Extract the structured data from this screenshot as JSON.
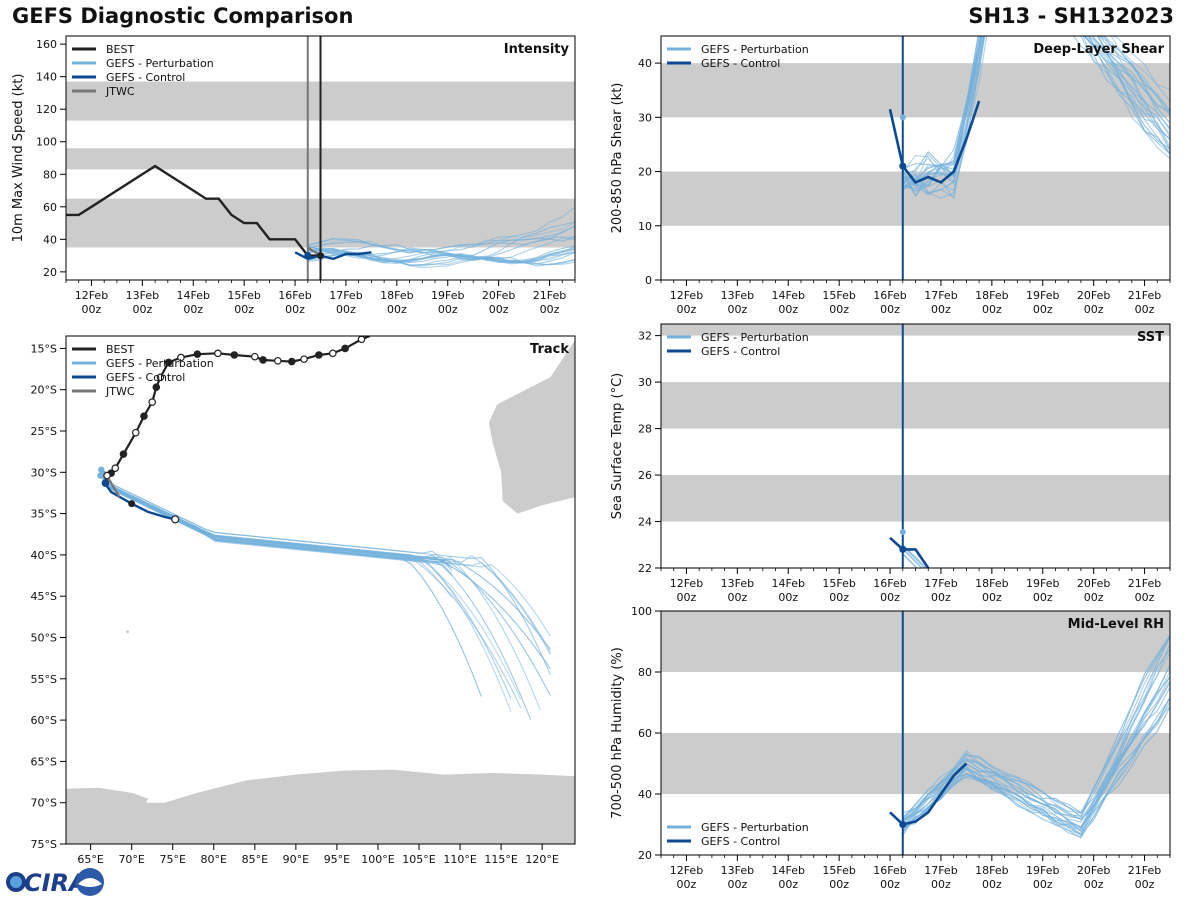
{
  "header": {
    "title_left": "GEFS Diagnostic Comparison",
    "title_right": "SH13 - SH132023",
    "logo_text": "CIRA"
  },
  "colors": {
    "best": "#222222",
    "perturbation": "#74b1dc",
    "control": "#0b4a91",
    "jtwc": "#777777",
    "band": "#cccccc",
    "land": "#cccccc"
  },
  "time_axis": {
    "tick_days": [
      12,
      13,
      14,
      15,
      16,
      17,
      18,
      19,
      20,
      21
    ],
    "labels_top": [
      "12Feb",
      "13Feb",
      "14Feb",
      "15Feb",
      "16Feb",
      "17Feb",
      "18Feb",
      "19Feb",
      "20Feb",
      "21Feb"
    ],
    "labels_bottom": [
      "00z",
      "00z",
      "00z",
      "00z",
      "00z",
      "00z",
      "00z",
      "00z",
      "00z",
      "00z"
    ],
    "init_day": 16.25
  },
  "chart_data": [
    {
      "id": "intensity",
      "type": "line",
      "title": "Intensity",
      "ylabel": "10m Max Wind Speed (kt)",
      "xlim": [
        11.5,
        21.5
      ],
      "ylim": [
        15,
        165
      ],
      "yticks": [
        20,
        40,
        60,
        80,
        100,
        120,
        140,
        160
      ],
      "bands": [
        [
          35,
          65
        ],
        [
          83,
          96
        ],
        [
          113,
          137
        ]
      ],
      "vlines": [
        {
          "x": 16.25,
          "color": "#777777"
        },
        {
          "x": 16.5,
          "color": "#222222"
        }
      ],
      "legend": [
        "BEST",
        "GEFS - Perturbation",
        "GEFS - Control",
        "JTWC"
      ],
      "series": [
        {
          "name": "BEST",
          "x": [
            11.5,
            11.75,
            12,
            12.5,
            13,
            13.25,
            13.5,
            14,
            14.25,
            14.5,
            14.75,
            15,
            15.25,
            15.5,
            16,
            16.25,
            16.5
          ],
          "y": [
            55,
            55,
            60,
            70,
            80,
            85,
            80,
            70,
            65,
            65,
            55,
            50,
            50,
            40,
            40,
            30,
            30
          ]
        },
        {
          "name": "GEFS - Control",
          "x": [
            16,
            16.25,
            16.5,
            16.75,
            17,
            17.25,
            17.5
          ],
          "y": [
            32,
            28,
            30,
            28,
            31,
            31,
            32
          ]
        },
        {
          "name": "JTWC",
          "x": [
            16.25,
            16.5
          ],
          "y": [
            35,
            30
          ]
        }
      ]
    },
    {
      "id": "track",
      "type": "scatter",
      "title": "Track",
      "xlim": [
        62,
        124
      ],
      "ylim": [
        -75,
        -13.5
      ],
      "xticks": [
        65,
        70,
        75,
        80,
        85,
        90,
        95,
        100,
        105,
        110,
        115,
        120
      ],
      "xtick_labels": [
        "65°E",
        "70°E",
        "75°E",
        "80°E",
        "85°E",
        "90°E",
        "95°E",
        "100°E",
        "105°E",
        "110°E",
        "115°E",
        "120°E"
      ],
      "yticks": [
        -15,
        -20,
        -25,
        -30,
        -35,
        -40,
        -45,
        -50,
        -55,
        -60,
        -65,
        -70,
        -75
      ],
      "ytick_labels": [
        "15°S",
        "20°S",
        "25°S",
        "30°S",
        "35°S",
        "40°S",
        "45°S",
        "50°S",
        "55°S",
        "60°S",
        "65°S",
        "70°S",
        "75°S"
      ],
      "legend": [
        "BEST",
        "GEFS - Perturbation",
        "GEFS - Control",
        "JTWC"
      ],
      "best_track": {
        "lon": [
          99,
          98,
          96,
          94.5,
          92.8,
          91,
          89.5,
          87.8,
          86,
          85,
          82.5,
          80.5,
          78,
          76,
          74.5,
          73.5,
          73,
          72.5,
          71.5,
          70.5,
          69,
          68,
          67.5,
          67,
          66.8
        ],
        "lat": [
          -13.5,
          -13.9,
          -15,
          -15.6,
          -15.8,
          -16.3,
          -16.6,
          -16.5,
          -16.4,
          -16,
          -15.8,
          -15.6,
          -15.7,
          -16.1,
          -16.7,
          -18.5,
          -19.7,
          -21.5,
          -23.2,
          -25.2,
          -27.8,
          -29.5,
          -30.1,
          -30.4,
          -31.3
        ]
      },
      "control_track": {
        "lon": [
          66.5,
          67.5,
          70,
          72,
          74,
          75.3
        ],
        "lat": [
          -31,
          -32.4,
          -33.8,
          -34.8,
          -35.4,
          -35.7
        ]
      }
    },
    {
      "id": "shear",
      "type": "line",
      "title": "Deep-Layer Shear",
      "ylabel": "200-850 hPa Shear (kt)",
      "xlim": [
        11.5,
        21.5
      ],
      "ylim": [
        0,
        45
      ],
      "yticks": [
        0,
        10,
        20,
        30,
        40
      ],
      "bands": [
        [
          10,
          20
        ],
        [
          30,
          40
        ]
      ],
      "vlines": [
        {
          "x": 16.25,
          "color": "#0b4a91"
        }
      ],
      "legend": [
        "GEFS - Perturbation",
        "GEFS - Control"
      ],
      "series": [
        {
          "name": "GEFS - Control",
          "x": [
            16,
            16.25,
            16.5,
            16.75,
            17,
            17.25,
            17.5,
            17.75
          ],
          "y": [
            31.5,
            21,
            18,
            19,
            18,
            20,
            26,
            33
          ]
        }
      ]
    },
    {
      "id": "sst",
      "type": "line",
      "title": "SST",
      "ylabel": "Sea Surface Temp (°C)",
      "xlim": [
        11.5,
        21.5
      ],
      "ylim": [
        22,
        32.5
      ],
      "yticks": [
        22,
        24,
        26,
        28,
        30,
        32
      ],
      "bands": [
        [
          24,
          26
        ],
        [
          28,
          30
        ],
        [
          32,
          33
        ]
      ],
      "vlines": [
        {
          "x": 16.25,
          "color": "#0b4a91"
        }
      ],
      "legend": [
        "GEFS - Perturbation",
        "GEFS - Control"
      ],
      "series": [
        {
          "name": "GEFS - Control",
          "x": [
            16,
            16.25,
            16.5,
            16.75
          ],
          "y": [
            23.3,
            22.8,
            22.8,
            22.0
          ]
        }
      ]
    },
    {
      "id": "midlevel_rh",
      "type": "line",
      "title": "Mid-Level RH",
      "ylabel": "700-500 hPa Humidity (%)",
      "xlim": [
        11.5,
        21.5
      ],
      "ylim": [
        20,
        100
      ],
      "yticks": [
        20,
        40,
        60,
        80,
        100
      ],
      "bands": [
        [
          40,
          60
        ],
        [
          80,
          100
        ]
      ],
      "vlines": [
        {
          "x": 16.25,
          "color": "#0b4a91"
        }
      ],
      "legend": [
        "GEFS - Perturbation",
        "GEFS - Control"
      ],
      "series": [
        {
          "name": "GEFS - Control",
          "x": [
            16,
            16.25,
            16.5,
            16.75,
            17,
            17.25,
            17.5
          ],
          "y": [
            34,
            30,
            31,
            34,
            40,
            46,
            50
          ]
        }
      ]
    }
  ]
}
